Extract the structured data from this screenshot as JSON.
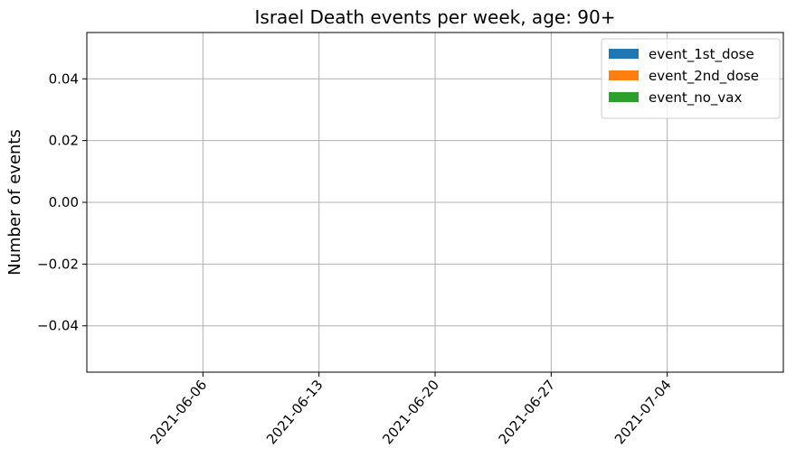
{
  "chart_data": {
    "type": "bar",
    "title": "Israel Death events per week, age: 90+",
    "xlabel": "",
    "ylabel": "Number of events",
    "x_ticks": [
      "2021-06-06",
      "2021-06-13",
      "2021-06-20",
      "2021-06-27",
      "2021-07-04"
    ],
    "xlim": [
      "2021-05-30",
      "2021-07-11"
    ],
    "ylim": [
      -0.055,
      0.055
    ],
    "y_ticks": [
      -0.04,
      -0.02,
      0.0,
      0.02,
      0.04
    ],
    "y_tick_labels": [
      "−0.04",
      "−0.02",
      "0.00",
      "0.02",
      "0.04"
    ],
    "series": [
      {
        "name": "event_1st_dose",
        "color": "#1f77b4",
        "values": []
      },
      {
        "name": "event_2nd_dose",
        "color": "#ff7f0e",
        "values": []
      },
      {
        "name": "event_no_vax",
        "color": "#2ca02c",
        "values": []
      }
    ],
    "grid": true,
    "legend_position": "top-right"
  }
}
